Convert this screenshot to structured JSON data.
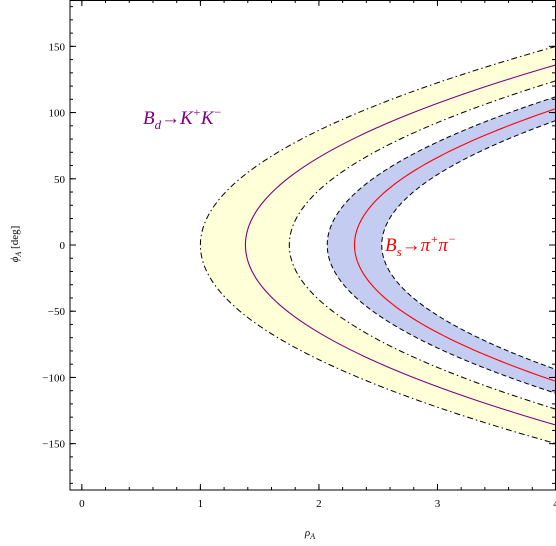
{
  "chart_data": {
    "type": "area",
    "title": "",
    "xlabel": "ρ_A",
    "ylabel": "ϕ_A [deg]",
    "xlim": [
      -0.1,
      4.0
    ],
    "ylim": [
      -185,
      185
    ],
    "xticks": [
      0,
      1,
      2,
      3,
      4
    ],
    "yticks": [
      -150,
      -100,
      -50,
      0,
      50,
      100,
      150
    ],
    "grid": false,
    "legend": "none",
    "series": [
      {
        "name": "B_d→K⁺K⁻",
        "fill_color": "#ffffd8",
        "central_color": "#800080",
        "boundary_style": "dash-dot",
        "outer_vertex": 1.0,
        "central_vertex": 1.38,
        "inner_vertex": 1.75,
        "outer_phi_at_x4": 150,
        "central_phi_at_x4": 136,
        "inner_phi_at_x4": 124
      },
      {
        "name": "B_s→π⁺π⁻",
        "fill_color": "#c4ccf2",
        "central_color": "#ff0000",
        "boundary_style": "dashed",
        "outer_vertex": 2.07,
        "central_vertex": 2.3,
        "inner_vertex": 2.53,
        "outer_phi_at_x4": 112,
        "central_phi_at_x4": 103,
        "inner_phi_at_x4": 94
      }
    ],
    "annotations": [
      {
        "label_main": "B",
        "label_sub": "d",
        "label_rest": "→K",
        "sup1": "+",
        "label_k": "K",
        "sup2": "−",
        "color": "#800080"
      },
      {
        "label_main": "B",
        "label_sub": "s",
        "label_rest": "→π",
        "sup1": "+",
        "label_k": "π",
        "sup2": "−",
        "color": "#ff0000"
      }
    ]
  }
}
